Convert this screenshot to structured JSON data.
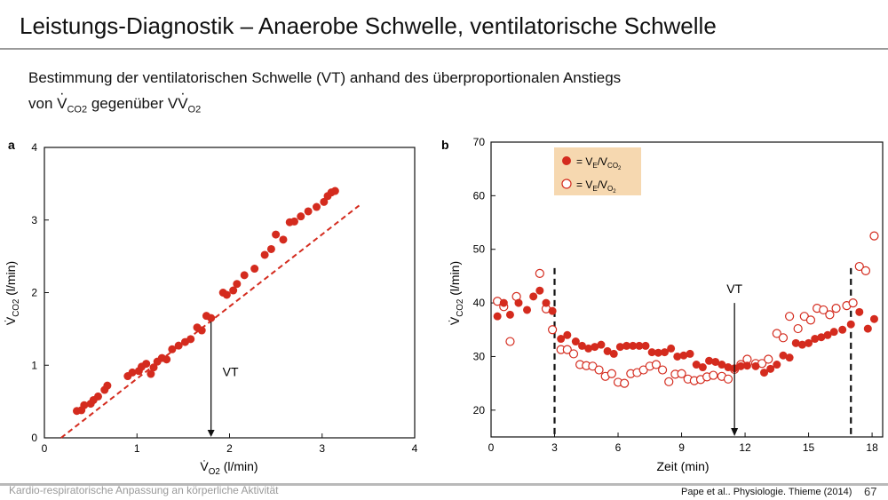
{
  "header": {
    "title": "Leistungs-Diagnostik – Anaerobe Schwelle, ventilatorische Schwelle",
    "subtitle_line1": "Bestimmung der ventilatorischen Schwelle (VT) anhand des überproportionalen Anstiegs",
    "subtitle_line2_a": "von V",
    "subtitle_line2_b": "CO",
    "subtitle_line2_c": "2",
    "subtitle_line2_d": " gegenüber V",
    "subtitle_line2_e": "O",
    "subtitle_line2_f": "2"
  },
  "footer": {
    "left": "Kardio-respiratorische Anpassung an körperliche Aktivität",
    "source": "Pape et al.. Physiologie. Thieme (2014)",
    "page": "67"
  },
  "colors": {
    "filled": "#d42b1e",
    "open_stroke": "#d42b1e",
    "legend_bg": "#f6d8b0",
    "line": "#d42b1e"
  },
  "chart_data": [
    {
      "panel": "a",
      "type": "scatter",
      "xlabel": "V̇O2 (l/min)",
      "ylabel": "V̇CO2 (l/min)",
      "xlim": [
        0,
        4
      ],
      "ylim": [
        0,
        4
      ],
      "xticks": [
        0,
        1,
        2,
        3,
        4
      ],
      "yticks": [
        0,
        1,
        2,
        3,
        4
      ],
      "annotation": {
        "text": "VT",
        "x": 1.8,
        "arrow_from_y": 1.6,
        "arrow_to_y": 0.0
      },
      "reference_line": {
        "style": "dashed",
        "from": [
          0.18,
          0.0
        ],
        "to": [
          3.4,
          3.2
        ]
      },
      "points": [
        [
          0.35,
          0.37
        ],
        [
          0.4,
          0.38
        ],
        [
          0.43,
          0.45
        ],
        [
          0.5,
          0.47
        ],
        [
          0.53,
          0.52
        ],
        [
          0.58,
          0.57
        ],
        [
          0.65,
          0.66
        ],
        [
          0.68,
          0.72
        ],
        [
          0.9,
          0.85
        ],
        [
          0.95,
          0.9
        ],
        [
          1.02,
          0.92
        ],
        [
          1.05,
          0.98
        ],
        [
          1.1,
          1.02
        ],
        [
          1.15,
          0.88
        ],
        [
          1.18,
          0.97
        ],
        [
          1.22,
          1.05
        ],
        [
          1.27,
          1.1
        ],
        [
          1.32,
          1.08
        ],
        [
          1.38,
          1.22
        ],
        [
          1.45,
          1.27
        ],
        [
          1.52,
          1.32
        ],
        [
          1.58,
          1.36
        ],
        [
          1.65,
          1.52
        ],
        [
          1.7,
          1.48
        ],
        [
          1.75,
          1.68
        ],
        [
          1.8,
          1.65
        ],
        [
          1.93,
          2.0
        ],
        [
          1.97,
          1.97
        ],
        [
          2.04,
          2.03
        ],
        [
          2.08,
          2.12
        ],
        [
          2.16,
          2.24
        ],
        [
          2.27,
          2.33
        ],
        [
          2.38,
          2.52
        ],
        [
          2.45,
          2.6
        ],
        [
          2.5,
          2.8
        ],
        [
          2.58,
          2.73
        ],
        [
          2.65,
          2.97
        ],
        [
          2.7,
          2.98
        ],
        [
          2.77,
          3.05
        ],
        [
          2.85,
          3.12
        ],
        [
          2.94,
          3.18
        ],
        [
          3.02,
          3.25
        ],
        [
          3.06,
          3.33
        ],
        [
          3.1,
          3.38
        ],
        [
          3.14,
          3.4
        ]
      ]
    },
    {
      "panel": "b",
      "type": "scatter",
      "xlabel": "Zeit (min)",
      "ylabel": "V̇CO2 (l/min)",
      "xlim": [
        0,
        18.5
      ],
      "ylim": [
        15,
        70
      ],
      "xticks": [
        0,
        3,
        6,
        9,
        12,
        15,
        18
      ],
      "yticks": [
        20,
        30,
        40,
        50,
        60,
        70
      ],
      "vlines_dashed": [
        3,
        17
      ],
      "annotation": {
        "text": "VT",
        "x": 11.5,
        "arrow_from_y": 40,
        "arrow_to_y": 15
      },
      "series": [
        {
          "name": "= V̇E/V̇CO2",
          "marker": "filled",
          "points": [
            [
              0.3,
              37.5
            ],
            [
              0.6,
              40.0
            ],
            [
              0.9,
              37.8
            ],
            [
              1.3,
              40.0
            ],
            [
              1.7,
              38.7
            ],
            [
              2.0,
              41.2
            ],
            [
              2.3,
              42.3
            ],
            [
              2.6,
              40.0
            ],
            [
              2.9,
              38.5
            ],
            [
              3.3,
              33.3
            ],
            [
              3.6,
              34.0
            ],
            [
              4.0,
              32.8
            ],
            [
              4.3,
              32.0
            ],
            [
              4.6,
              31.5
            ],
            [
              4.9,
              31.8
            ],
            [
              5.2,
              32.2
            ],
            [
              5.5,
              31.0
            ],
            [
              5.8,
              30.5
            ],
            [
              6.1,
              31.8
            ],
            [
              6.4,
              32.0
            ],
            [
              6.7,
              32.0
            ],
            [
              7.0,
              32.0
            ],
            [
              7.3,
              32.0
            ],
            [
              7.6,
              30.8
            ],
            [
              7.9,
              30.7
            ],
            [
              8.2,
              30.8
            ],
            [
              8.5,
              31.5
            ],
            [
              8.8,
              30.0
            ],
            [
              9.1,
              30.2
            ],
            [
              9.4,
              30.5
            ],
            [
              9.7,
              28.5
            ],
            [
              10.0,
              28.0
            ],
            [
              10.3,
              29.2
            ],
            [
              10.6,
              29.0
            ],
            [
              10.9,
              28.5
            ],
            [
              11.2,
              28.0
            ],
            [
              11.5,
              27.8
            ],
            [
              11.8,
              28.2
            ],
            [
              12.1,
              28.3
            ],
            [
              12.5,
              28.2
            ],
            [
              12.9,
              27.0
            ],
            [
              13.2,
              27.7
            ],
            [
              13.5,
              28.5
            ],
            [
              13.8,
              30.2
            ],
            [
              14.1,
              29.8
            ],
            [
              14.4,
              32.5
            ],
            [
              14.7,
              32.2
            ],
            [
              15.0,
              32.5
            ],
            [
              15.3,
              33.3
            ],
            [
              15.6,
              33.6
            ],
            [
              15.9,
              34.0
            ],
            [
              16.2,
              34.6
            ],
            [
              16.6,
              35.0
            ],
            [
              17.0,
              36.0
            ],
            [
              17.4,
              38.3
            ],
            [
              17.8,
              35.2
            ],
            [
              18.1,
              37.0
            ]
          ]
        },
        {
          "name": "= V̇E/V̇O2",
          "marker": "open",
          "points": [
            [
              0.3,
              40.3
            ],
            [
              0.6,
              39.3
            ],
            [
              0.9,
              32.8
            ],
            [
              1.2,
              41.2
            ],
            [
              2.3,
              45.5
            ],
            [
              2.6,
              38.9
            ],
            [
              2.9,
              35.0
            ],
            [
              3.3,
              31.3
            ],
            [
              3.6,
              31.3
            ],
            [
              3.9,
              30.5
            ],
            [
              4.2,
              28.5
            ],
            [
              4.5,
              28.3
            ],
            [
              4.8,
              28.2
            ],
            [
              5.1,
              27.5
            ],
            [
              5.4,
              26.3
            ],
            [
              5.7,
              26.8
            ],
            [
              6.0,
              25.2
            ],
            [
              6.3,
              25.0
            ],
            [
              6.6,
              26.8
            ],
            [
              6.9,
              27.0
            ],
            [
              7.2,
              27.5
            ],
            [
              7.5,
              28.2
            ],
            [
              7.8,
              28.5
            ],
            [
              8.1,
              27.5
            ],
            [
              8.4,
              25.3
            ],
            [
              8.7,
              26.7
            ],
            [
              9.0,
              26.8
            ],
            [
              9.3,
              25.8
            ],
            [
              9.6,
              25.5
            ],
            [
              9.9,
              25.7
            ],
            [
              10.2,
              26.2
            ],
            [
              10.5,
              26.5
            ],
            [
              10.9,
              26.3
            ],
            [
              11.2,
              25.8
            ],
            [
              11.5,
              27.6
            ],
            [
              11.8,
              28.5
            ],
            [
              12.1,
              29.5
            ],
            [
              12.5,
              28.7
            ],
            [
              12.8,
              28.7
            ],
            [
              13.1,
              29.5
            ],
            [
              13.5,
              34.3
            ],
            [
              13.8,
              33.5
            ],
            [
              14.1,
              37.5
            ],
            [
              14.5,
              35.2
            ],
            [
              14.8,
              37.5
            ],
            [
              15.1,
              36.8
            ],
            [
              15.4,
              39.0
            ],
            [
              15.7,
              38.7
            ],
            [
              16.0,
              37.8
            ],
            [
              16.3,
              39.0
            ],
            [
              16.8,
              39.5
            ],
            [
              17.1,
              40.0
            ],
            [
              17.4,
              46.8
            ],
            [
              17.7,
              46.0
            ],
            [
              18.1,
              52.5
            ]
          ]
        }
      ]
    }
  ],
  "panel_labels": {
    "a": "a",
    "b": "b"
  },
  "legend": {
    "filled_v": "V",
    "filled_e": "E",
    "filled_slash": "/V",
    "filled_sub": "CO",
    "filled_sub2": "2",
    "open_v": "V",
    "open_e": "E",
    "open_slash": "/V",
    "open_sub": "O",
    "open_sub2": "2",
    "prefix": "= "
  }
}
